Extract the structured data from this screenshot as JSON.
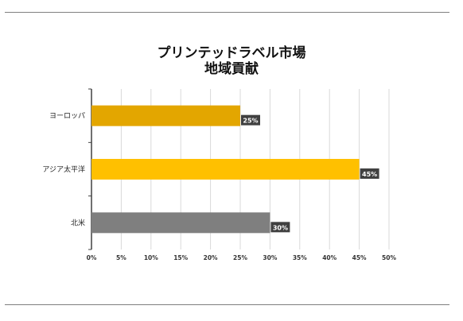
{
  "chart_data": {
    "type": "bar",
    "orientation": "horizontal",
    "title": "プリンテッドラベル市場",
    "subtitle": "地域貢献",
    "categories": [
      "ヨーロッパ",
      "アジア太平洋",
      "北米"
    ],
    "values": [
      25,
      45,
      30
    ],
    "data_labels": [
      "25%",
      "45%",
      "30%"
    ],
    "bar_colors": [
      "#e3a600",
      "#ffc000",
      "#7f7f7f"
    ],
    "xlim": [
      0,
      50
    ],
    "x_ticks": [
      "0%",
      "5%",
      "10%",
      "15%",
      "20%",
      "25%",
      "30%",
      "35%",
      "40%",
      "45%",
      "50%"
    ],
    "grid": true
  }
}
